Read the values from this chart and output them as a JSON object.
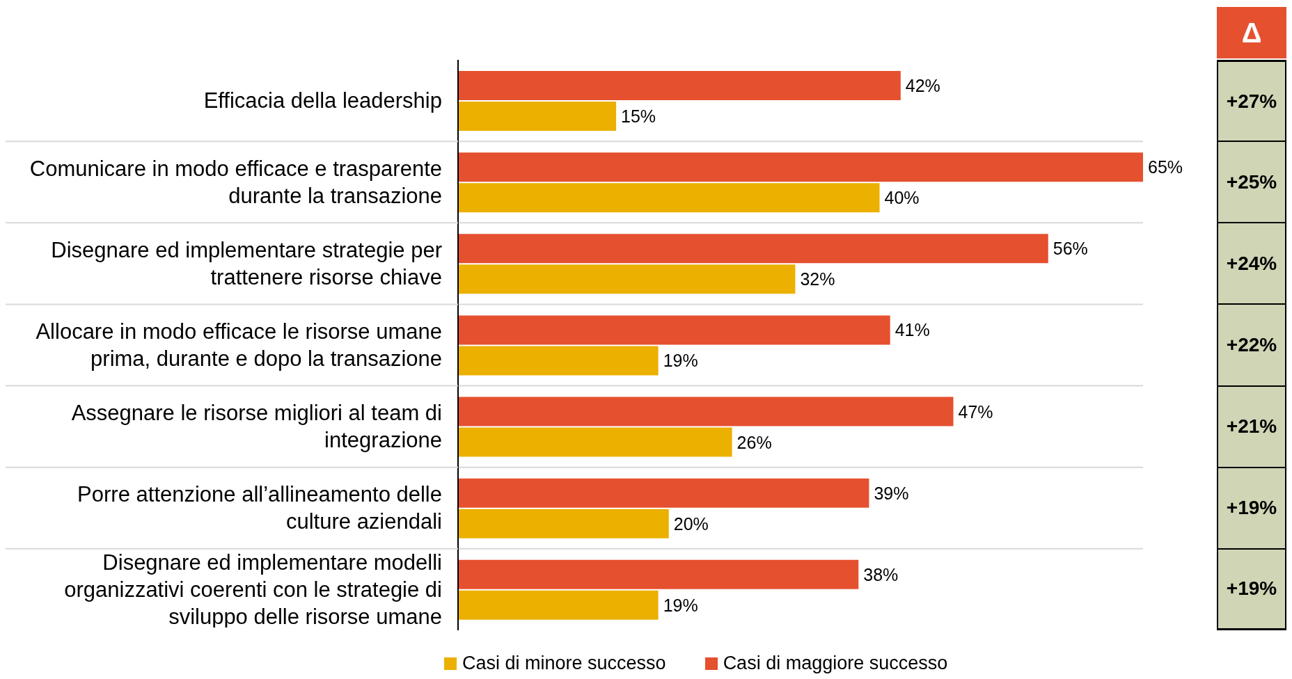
{
  "chart_data": {
    "type": "bar",
    "orientation": "horizontal",
    "legend": "bottom",
    "grid": "y",
    "categories": [
      "Efficacia della leadership",
      "Comunicare in modo efficace e trasparente durante la transazione",
      "Disegnare ed implementare strategie per trattenere risorse chiave",
      "Allocare in modo efficace le risorse umane prima, durante e dopo la transazione",
      "Assegnare le risorse migliori al team di integrazione",
      "Porre attenzione all’allineamento delle culture aziendali",
      "Disegnare ed implementare modelli organizzativi coerenti con le strategie di sviluppo delle risorse umane"
    ],
    "series": [
      {
        "name": "Casi di maggiore successo",
        "color": "#e5502f",
        "values": [
          42,
          65,
          56,
          41,
          47,
          39,
          38
        ],
        "value_labels": [
          "42%",
          "65%",
          "56%",
          "41%",
          "47%",
          "39%",
          "38%"
        ]
      },
      {
        "name": "Casi di minore successo",
        "color": "#ebb000",
        "values": [
          15,
          40,
          32,
          19,
          26,
          20,
          19
        ],
        "value_labels": [
          "15%",
          "40%",
          "32%",
          "19%",
          "26%",
          "20%",
          "19%"
        ]
      }
    ],
    "annotations": [
      "Δ",
      "+27%",
      "+25%",
      "+24%",
      "+22%",
      "+21%",
      "+19%",
      "+19%"
    ]
  }
}
